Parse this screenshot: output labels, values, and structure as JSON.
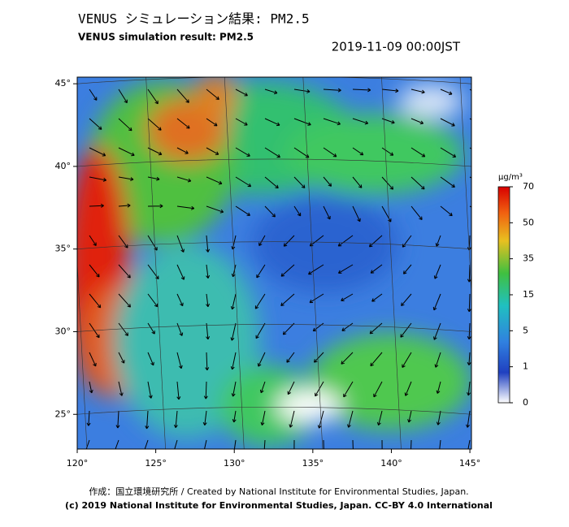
{
  "header": {
    "title": "VENUS シミュレーション結果: PM2.5",
    "subtitle": "VENUS simulation result: PM2.5",
    "datetime": "2019-11-09 00:00JST"
  },
  "map": {
    "xlim": [
      120,
      145.1
    ],
    "ylim": [
      22.9,
      45.4
    ],
    "xticks": [
      {
        "value": 120,
        "label": "120°"
      },
      {
        "value": 125,
        "label": "125°"
      },
      {
        "value": 130,
        "label": "130°"
      },
      {
        "value": 135,
        "label": "135°"
      },
      {
        "value": 140,
        "label": "140°"
      },
      {
        "value": 145,
        "label": "145°"
      }
    ],
    "yticks": [
      {
        "value": 25,
        "label": "25°"
      },
      {
        "value": 30,
        "label": "30°"
      },
      {
        "value": 35,
        "label": "35°"
      },
      {
        "value": 40,
        "label": "40°"
      },
      {
        "value": 45,
        "label": "45°"
      }
    ]
  },
  "colorbar": {
    "unit": "μg/m³",
    "ticks": [
      0,
      1,
      5,
      15,
      35,
      50,
      70
    ]
  },
  "footer": {
    "credit": "作成：国立環境研究所 / Created by National Institute for Environmental Studies, Japan.",
    "copyright": "(c) 2019 National Institute for Environmental Studies, Japan. CC-BY 4.0 International"
  }
}
